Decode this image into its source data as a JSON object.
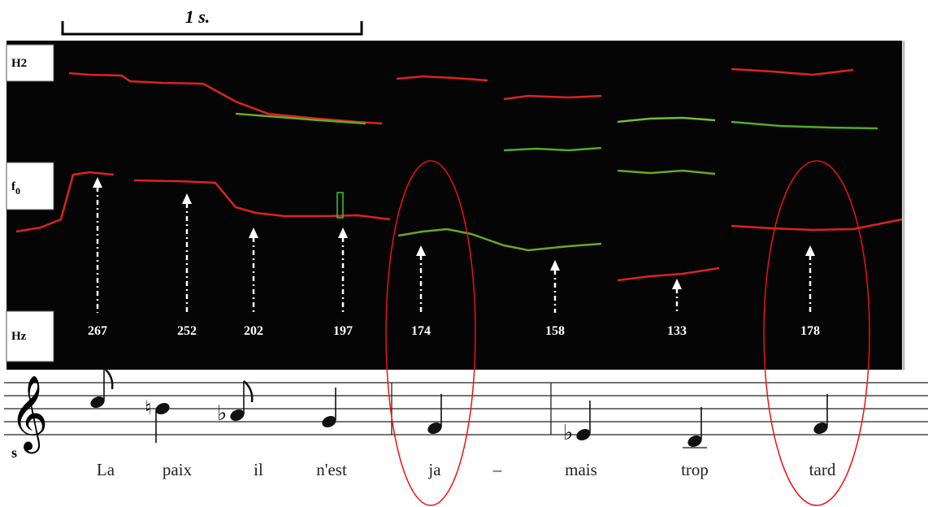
{
  "scale_bar": "1 s.",
  "axis_labels": {
    "h2": "H2",
    "f0": {
      "main": "f",
      "sub": "0"
    },
    "hz": "Hz"
  },
  "frequencies": [
    267,
    252,
    202,
    197,
    174,
    158,
    133,
    178
  ],
  "clef_label": "s",
  "lyrics": [
    "La",
    "paix",
    "il",
    "n'est",
    "ja",
    "–",
    "mais",
    "trop",
    "tard"
  ]
}
